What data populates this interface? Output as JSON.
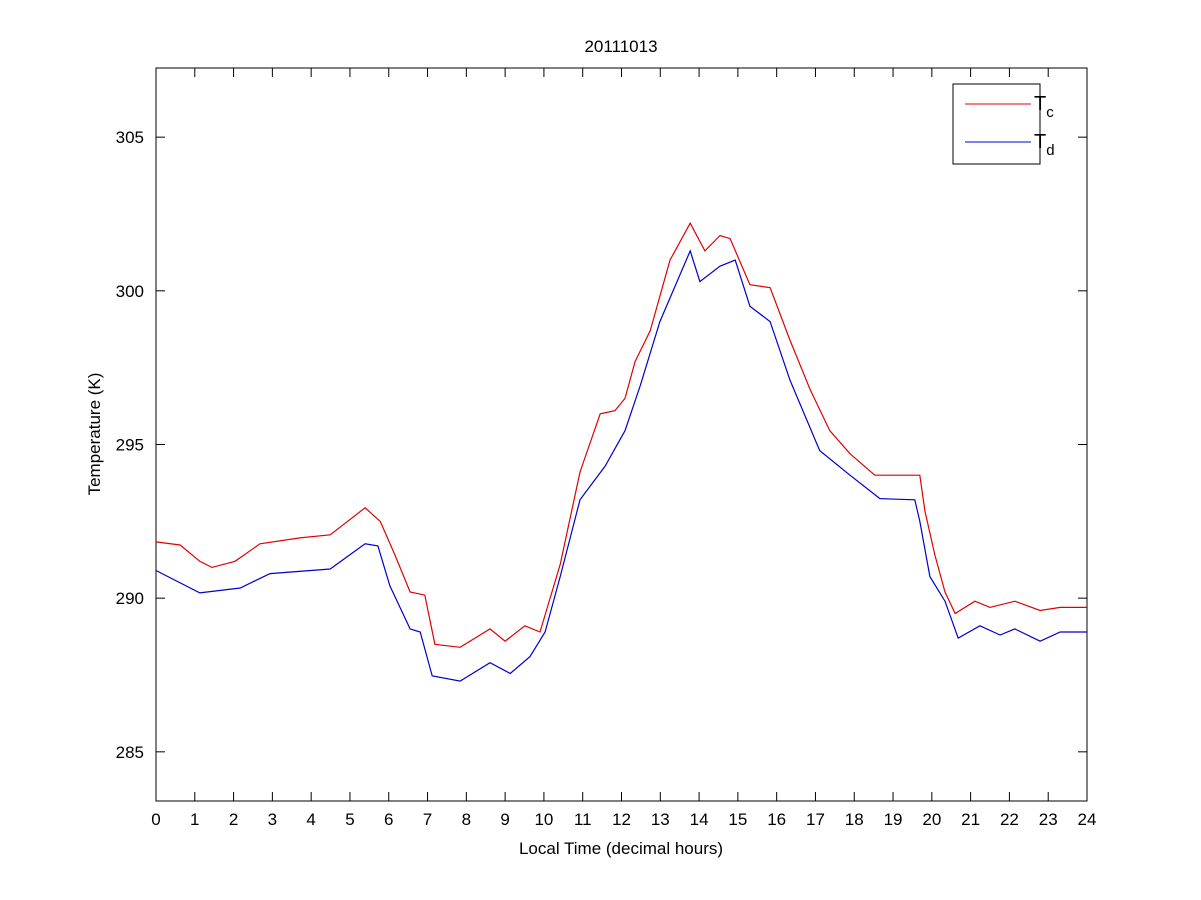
{
  "chart_data": {
    "type": "line",
    "title": "20111013",
    "xlabel": "Local Time (decimal hours)",
    "ylabel": "Temperature (K)",
    "xlim": [
      0,
      24
    ],
    "ylim": [
      283.4,
      307.25
    ],
    "xticks": [
      0,
      1,
      2,
      3,
      4,
      5,
      6,
      7,
      8,
      9,
      10,
      11,
      12,
      13,
      14,
      15,
      16,
      17,
      18,
      19,
      20,
      21,
      22,
      23,
      24
    ],
    "yticks": [
      285,
      290,
      295,
      300,
      305
    ],
    "grid": false,
    "legend_position": "top-right",
    "series": [
      {
        "name": "T",
        "subscript": "c",
        "color": "#e00000",
        "x": [
          0,
          0.62,
          1.13,
          1.44,
          2.04,
          2.68,
          3.71,
          4.49,
          5.39,
          5.78,
          6.16,
          6.55,
          6.93,
          7.19,
          7.84,
          8.61,
          9.0,
          9.51,
          9.9,
          10.42,
          10.93,
          11.45,
          11.83,
          12.09,
          12.35,
          12.74,
          13.25,
          13.77,
          14.15,
          14.54,
          14.8,
          15.31,
          15.83,
          16.34,
          16.86,
          17.37,
          17.89,
          18.53,
          19.18,
          19.69,
          19.82,
          20.08,
          20.34,
          20.6,
          21.11,
          21.5,
          22.14,
          22.79,
          23.31,
          24
        ],
        "y": [
          291.83,
          291.73,
          291.2,
          291.0,
          291.2,
          291.77,
          291.96,
          292.06,
          292.94,
          292.5,
          291.4,
          290.2,
          290.1,
          288.5,
          288.4,
          289.0,
          288.6,
          289.1,
          288.9,
          291.1,
          294.1,
          296.0,
          296.1,
          296.5,
          297.7,
          298.7,
          301.0,
          302.2,
          301.3,
          301.8,
          301.7,
          300.2,
          300.1,
          298.4,
          296.8,
          295.45,
          294.7,
          294.0,
          294.0,
          294.0,
          292.84,
          291.4,
          290.2,
          289.5,
          289.9,
          289.7,
          289.9,
          289.6,
          289.7,
          289.7
        ]
      },
      {
        "name": "T",
        "subscript": "d",
        "color": "#0000cc",
        "x": [
          0,
          1.13,
          2.17,
          2.94,
          4.49,
          5.39,
          5.72,
          6.03,
          6.55,
          6.81,
          7.12,
          7.84,
          8.61,
          9.13,
          9.64,
          10.03,
          10.42,
          10.93,
          11.58,
          12.09,
          12.48,
          12.99,
          13.77,
          14.02,
          14.54,
          14.93,
          15.31,
          15.83,
          16.34,
          17.11,
          17.89,
          18.66,
          19.56,
          19.69,
          19.95,
          20.34,
          20.68,
          21.24,
          21.76,
          22.14,
          22.79,
          23.31,
          24
        ],
        "y": [
          290.9,
          290.17,
          290.33,
          290.8,
          290.95,
          291.77,
          291.7,
          290.4,
          289.0,
          288.9,
          287.47,
          287.3,
          287.9,
          287.55,
          288.1,
          288.9,
          290.7,
          293.2,
          294.3,
          295.45,
          296.9,
          299.0,
          301.3,
          300.3,
          300.8,
          301.0,
          299.5,
          299.0,
          297.1,
          294.8,
          294.0,
          293.24,
          293.2,
          292.5,
          290.7,
          289.9,
          288.7,
          289.1,
          288.8,
          289.0,
          288.6,
          288.9,
          288.9
        ]
      }
    ]
  }
}
